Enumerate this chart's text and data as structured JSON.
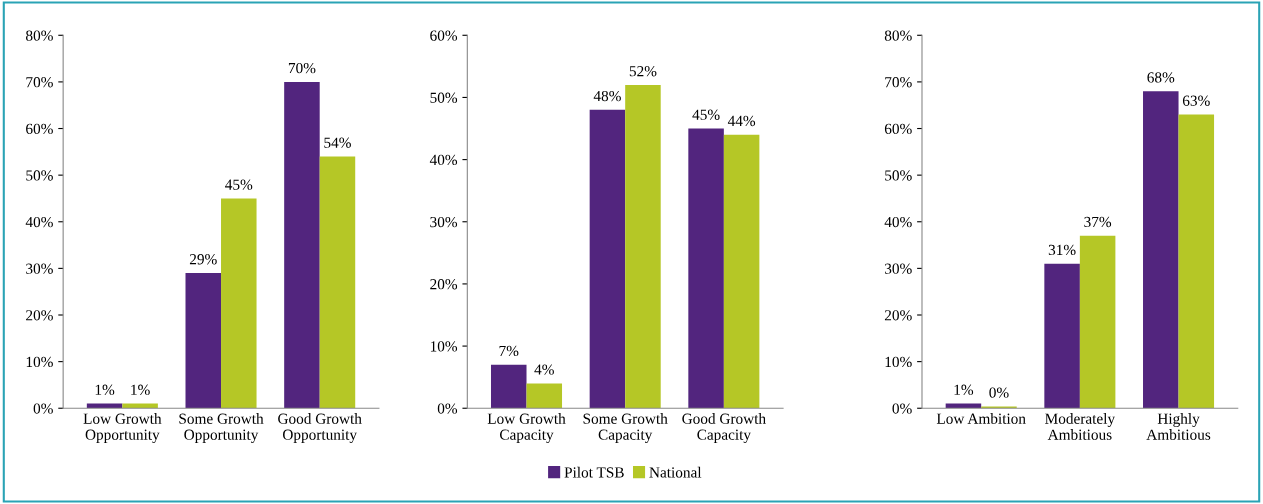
{
  "chart_data": [
    {
      "type": "bar",
      "categories": [
        "Low Growth\nOpportunity",
        "Some Growth\nOpportunity",
        "Good Growth\nOpportunity"
      ],
      "ylim": [
        0,
        80
      ],
      "yticks": [
        {
          "value": 0,
          "label": "0%"
        },
        {
          "value": 10,
          "label": "10%"
        },
        {
          "value": 20,
          "label": "20%"
        },
        {
          "value": 30,
          "label": "30%"
        },
        {
          "value": 40,
          "label": "40%"
        },
        {
          "value": 50,
          "label": "50%"
        },
        {
          "value": 60,
          "label": "60%"
        },
        {
          "value": 70,
          "label": "70%"
        },
        {
          "value": 80,
          "label": "80%"
        }
      ],
      "grid": false,
      "legend": false,
      "series": [
        {
          "color": "#52257e",
          "values": [
            1,
            29,
            70
          ],
          "value_labels": [
            "1%",
            "29%",
            "70%"
          ]
        },
        {
          "color": "#b5c726",
          "values": [
            1,
            45,
            54
          ],
          "value_labels": [
            "1%",
            "45%",
            "54%"
          ]
        }
      ]
    },
    {
      "type": "bar",
      "categories": [
        "Low Growth\nCapacity",
        "Some Growth\nCapacity",
        "Good Growth\nCapacity"
      ],
      "ylim": [
        0,
        60
      ],
      "yticks": [
        {
          "value": 0,
          "label": "0%"
        },
        {
          "value": 10,
          "label": "10%"
        },
        {
          "value": 20,
          "label": "20%"
        },
        {
          "value": 30,
          "label": "30%"
        },
        {
          "value": 40,
          "label": "40%"
        },
        {
          "value": 50,
          "label": "50%"
        },
        {
          "value": 60,
          "label": "60%"
        }
      ],
      "grid": false,
      "legend": "bottom",
      "series": [
        {
          "name": "Pilot TSB",
          "color": "#52257e",
          "values": [
            7,
            48,
            45
          ],
          "value_labels": [
            "7%",
            "48%",
            "45%"
          ]
        },
        {
          "name": "National",
          "color": "#b5c726",
          "values": [
            4,
            52,
            44
          ],
          "value_labels": [
            "4%",
            "52%",
            "44%"
          ]
        }
      ]
    },
    {
      "type": "bar",
      "categories": [
        "Low Ambition",
        "Moderately\nAmbitious",
        "Highly\nAmbitious"
      ],
      "ylim": [
        0,
        80
      ],
      "yticks": [
        {
          "value": 0,
          "label": "0%"
        },
        {
          "value": 10,
          "label": "10%"
        },
        {
          "value": 20,
          "label": "20%"
        },
        {
          "value": 30,
          "label": "30%"
        },
        {
          "value": 40,
          "label": "40%"
        },
        {
          "value": 50,
          "label": "50%"
        },
        {
          "value": 60,
          "label": "60%"
        },
        {
          "value": 70,
          "label": "70%"
        },
        {
          "value": 80,
          "label": "80%"
        }
      ],
      "grid": false,
      "legend": false,
      "series": [
        {
          "color": "#52257e",
          "values": [
            1,
            31,
            68
          ],
          "value_labels": [
            "1%",
            "31%",
            "68%"
          ]
        },
        {
          "color": "#b5c726",
          "values": [
            0.4,
            37,
            63
          ],
          "value_labels": [
            "0%",
            "37%",
            "63%"
          ]
        }
      ]
    }
  ]
}
